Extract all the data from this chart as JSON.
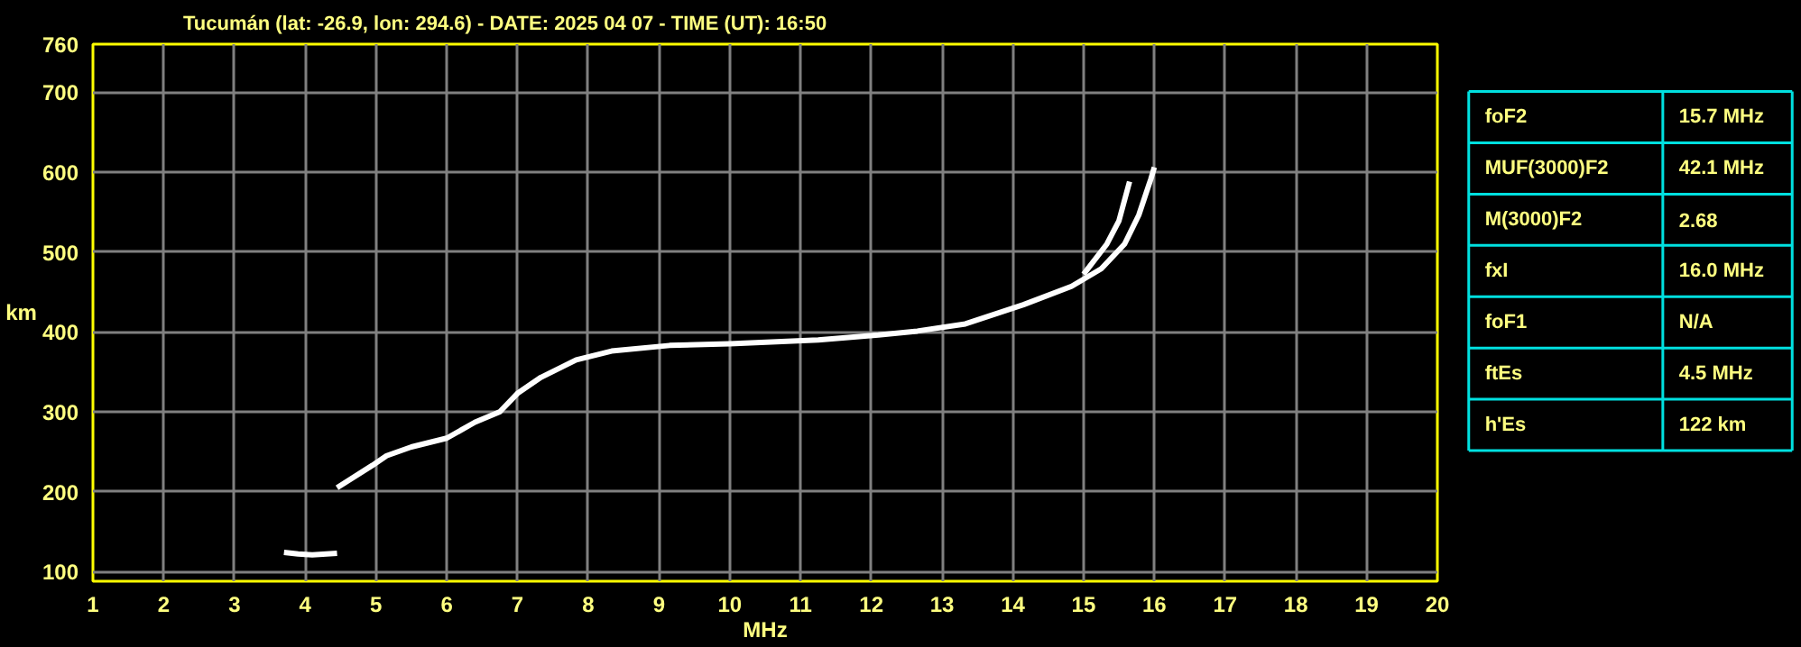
{
  "chart_data": [
    {
      "type": "line",
      "title": "Tucumán (lat: -26.9, lon: 294.6) - DATE: 2025 04 07 - TIME (UT): 16:50",
      "xlabel": "MHz",
      "ylabel": "km",
      "series": [
        {
          "color": "#ffffff",
          "x": [
            4.45,
            4.95,
            5.15,
            5.5,
            6.0,
            6.4,
            6.75,
            7.0,
            7.33,
            7.83,
            8.33,
            9.15,
            10.0,
            11.25,
            12.1,
            12.65,
            13.33,
            14.15,
            14.83,
            15.25,
            15.58,
            15.78,
            15.95,
            16.0
          ],
          "values": [
            205,
            233,
            245,
            256,
            267,
            287,
            300,
            323,
            343,
            365,
            376,
            383,
            385,
            390,
            396,
            401,
            410,
            434,
            457,
            479,
            510,
            546,
            591,
            606
          ]
        },
        {
          "color": "#ffffff",
          "x": [
            15.0,
            15.33,
            15.5,
            15.65
          ],
          "values": [
            472,
            510,
            539,
            588
          ]
        },
        {
          "color": "#ffffff",
          "x": [
            3.7,
            3.9,
            4.1,
            4.3,
            4.45
          ],
          "values": [
            124,
            122,
            121,
            122,
            123
          ]
        }
      ],
      "xlim": [
        1,
        20
      ],
      "ylim": [
        88,
        760
      ],
      "xticks": [
        1,
        2,
        3,
        4,
        5,
        6,
        7,
        8,
        9,
        10,
        11,
        12,
        13,
        14,
        15,
        16,
        17,
        18,
        19,
        20
      ],
      "yticks": [
        100,
        200,
        300,
        400,
        500,
        600,
        700,
        760
      ],
      "grid": true,
      "line_style": "solid"
    },
    {
      "type": "other",
      "annotations": [
        "foF2",
        "15.7 MHz",
        "MUF(3000)F2",
        "42.1 MHz",
        "M(3000)F2",
        "2.68",
        "fxI",
        "16.0 MHz",
        "foF1",
        "N/A",
        "ftEs",
        "4.5 MHz",
        "h'Es",
        "122 km"
      ]
    }
  ]
}
